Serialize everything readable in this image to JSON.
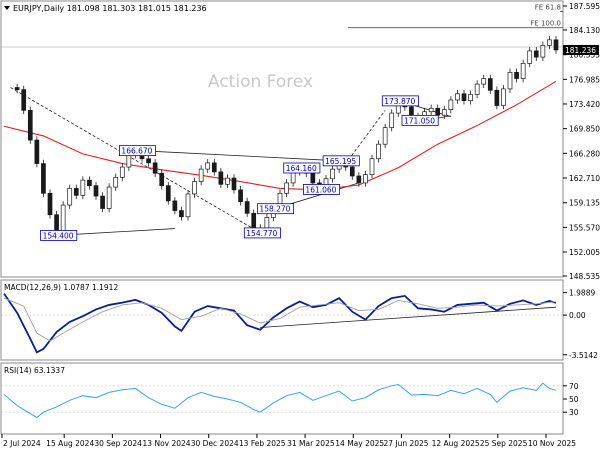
{
  "header": {
    "symbol_line": "EURJPY,Daily  181.098 181.303 181.015 181.236",
    "watermark": "Action Forex",
    "fe_618": "FE 61.8",
    "fe_100": "FE 100.0"
  },
  "colors": {
    "price_line": "#1a1a1a",
    "bull": "#ffffff",
    "ma": "#e02020",
    "macd": "#0d1f8c",
    "signal": "#9aa0aa",
    "rsi": "#3aa0ff",
    "trend": "#202020",
    "label_border": "#0000aa",
    "label_text": "#0000aa",
    "current_bg": "#000000"
  },
  "chart_data": [
    {
      "type": "line",
      "title": "EURJPY,Daily",
      "ylim": [
        148.535,
        187.595
      ],
      "yticks": [
        148.535,
        152.005,
        155.57,
        159.135,
        162.71,
        166.28,
        169.85,
        173.42,
        176.985,
        180.555,
        184.13,
        187.595
      ],
      "ytick_labels": [
        "148.535",
        "152.005",
        "155.570",
        "159.135",
        "162.710",
        "166.280",
        "169.850",
        "173.420",
        "176.985",
        "180.555",
        "184.130",
        "187.595"
      ],
      "x_dates": [
        "2 Jul 2024",
        "15 Aug 2024",
        "30 Sep 2024",
        "13 Nov 2024",
        "30 Dec 2024",
        "13 Feb 2025",
        "31 Mar 2025",
        "14 May 2025",
        "27 Jun 2025",
        "12 Aug 2025",
        "25 Sep 2025",
        "10 Nov 2025"
      ],
      "current_price": 181.236,
      "current_price_label": "181.236",
      "ohlc": {
        "open": 181.098,
        "high": 181.303,
        "low": 181.015,
        "close": 181.236
      },
      "price_path": [
        [
          0,
          175.8
        ],
        [
          2,
          175.5
        ],
        [
          3,
          172.5
        ],
        [
          4,
          168.2
        ],
        [
          5,
          164.8
        ],
        [
          6,
          160.5
        ],
        [
          7,
          157.4
        ],
        [
          8,
          154.4
        ],
        [
          9,
          158.8
        ],
        [
          10,
          161.2
        ],
        [
          11,
          160.2
        ],
        [
          12,
          162.4
        ],
        [
          13,
          161.6
        ],
        [
          14,
          160.1
        ],
        [
          15,
          158.3
        ],
        [
          16,
          161.4
        ],
        [
          17,
          162.8
        ],
        [
          18,
          164.3
        ],
        [
          19,
          166.1
        ],
        [
          20,
          166.67
        ],
        [
          21,
          165.5
        ],
        [
          22,
          164.9
        ],
        [
          23,
          163.4
        ],
        [
          24,
          161.6
        ],
        [
          25,
          159.4
        ],
        [
          26,
          158.0
        ],
        [
          27,
          157.1
        ],
        [
          28,
          160.4
        ],
        [
          29,
          162.2
        ],
        [
          30,
          164.0
        ],
        [
          31,
          164.9
        ],
        [
          32,
          163.6
        ],
        [
          33,
          161.8
        ],
        [
          34,
          162.7
        ],
        [
          35,
          161.0
        ],
        [
          36,
          159.3
        ],
        [
          37,
          157.6
        ],
        [
          38,
          155.5
        ],
        [
          39,
          154.77
        ],
        [
          40,
          157.0
        ],
        [
          41,
          158.27
        ],
        [
          42,
          160.5
        ],
        [
          43,
          162.0
        ],
        [
          44,
          163.6
        ],
        [
          45,
          164.16
        ],
        [
          46,
          163.4
        ],
        [
          47,
          162.0
        ],
        [
          48,
          161.06
        ],
        [
          49,
          162.6
        ],
        [
          50,
          164.0
        ],
        [
          51,
          165.19
        ],
        [
          52,
          164.3
        ],
        [
          53,
          163.0
        ],
        [
          54,
          162.0
        ],
        [
          55,
          163.2
        ],
        [
          56,
          165.5
        ],
        [
          57,
          167.6
        ],
        [
          58,
          170.0
        ],
        [
          59,
          172.1
        ],
        [
          60,
          173.87
        ],
        [
          61,
          173.0
        ],
        [
          62,
          171.6
        ],
        [
          63,
          171.05
        ],
        [
          64,
          172.3
        ],
        [
          65,
          172.8
        ],
        [
          66,
          171.8
        ],
        [
          67,
          172.6
        ],
        [
          68,
          174.0
        ],
        [
          69,
          174.9
        ],
        [
          70,
          173.9
        ],
        [
          71,
          174.8
        ],
        [
          72,
          176.3
        ],
        [
          73,
          177.1
        ],
        [
          74,
          175.4
        ],
        [
          75,
          173.2
        ],
        [
          76,
          175.6
        ],
        [
          77,
          178.0
        ],
        [
          78,
          177.1
        ],
        [
          79,
          179.3
        ],
        [
          80,
          181.1
        ],
        [
          81,
          180.2
        ],
        [
          82,
          181.9
        ],
        [
          83,
          182.7
        ],
        [
          84,
          181.236
        ]
      ],
      "ma_path": [
        [
          0,
          170.2
        ],
        [
          6,
          168.8
        ],
        [
          12,
          166.2
        ],
        [
          18,
          164.8
        ],
        [
          24,
          163.9
        ],
        [
          30,
          163.1
        ],
        [
          36,
          162.2
        ],
        [
          42,
          161.2
        ],
        [
          48,
          161.0
        ],
        [
          54,
          161.7
        ],
        [
          60,
          164.2
        ],
        [
          66,
          167.6
        ],
        [
          72,
          170.3
        ],
        [
          78,
          173.3
        ],
        [
          84,
          176.7
        ]
      ],
      "annotations": [
        {
          "label": "166.670",
          "x": 20,
          "value": 166.67
        },
        {
          "label": "154.400",
          "x": 8,
          "value": 154.4
        },
        {
          "label": "164.160",
          "x": 45,
          "value": 164.16
        },
        {
          "label": "165.195",
          "x": 51,
          "value": 165.195
        },
        {
          "label": "161.060",
          "x": 48,
          "value": 161.06
        },
        {
          "label": "158.270",
          "x": 41,
          "value": 158.27
        },
        {
          "label": "154.770",
          "x": 39,
          "value": 154.77
        },
        {
          "label": "173.870",
          "x": 60,
          "value": 173.87
        },
        {
          "label": "171.050",
          "x": 63,
          "value": 171.05
        }
      ],
      "trendlines": [
        {
          "from": [
            1,
            175.8
          ],
          "to": [
            39,
            154.8
          ]
        },
        {
          "from": [
            20,
            166.7
          ],
          "to": [
            51,
            165.2
          ]
        },
        {
          "from": [
            8,
            154.4
          ],
          "to": [
            26,
            155.4
          ]
        },
        {
          "from": [
            41,
            158.2
          ],
          "to": [
            54,
            162.0
          ]
        },
        {
          "from": [
            60,
            173.9
          ],
          "to": [
            68,
            171.6
          ]
        },
        {
          "from": [
            63,
            170.9
          ],
          "to": [
            68,
            171.7
          ]
        },
        {
          "from": [
            52,
            164.8
          ],
          "to": [
            58,
            172.5
          ]
        }
      ],
      "fe_levels": [
        {
          "name": "FE 61.8",
          "value": 186.8
        },
        {
          "name": "FE 100.0",
          "value": 184.45
        }
      ]
    },
    {
      "type": "line",
      "title": "MACD(12,26,9) 1.0787 1.1912",
      "ylim": [
        -3.8,
        2.4
      ],
      "yticks": [
        1.9889,
        0.0,
        -3.5142
      ],
      "ytick_labels": [
        "1.9889",
        "0.00",
        "-3.5142"
      ],
      "series": [
        {
          "name": "MACD",
          "values": [
            [
              0,
              1.9
            ],
            [
              2,
              0.2
            ],
            [
              4,
              -2.1
            ],
            [
              5,
              -3.3
            ],
            [
              6,
              -3.0
            ],
            [
              8,
              -1.5
            ],
            [
              10,
              -0.6
            ],
            [
              12,
              -0.1
            ],
            [
              14,
              0.5
            ],
            [
              16,
              0.9
            ],
            [
              18,
              1.1
            ],
            [
              20,
              1.35
            ],
            [
              22,
              0.9
            ],
            [
              24,
              0.2
            ],
            [
              26,
              -1.0
            ],
            [
              27,
              -1.4
            ],
            [
              29,
              0.3
            ],
            [
              31,
              0.8
            ],
            [
              33,
              0.6
            ],
            [
              35,
              0.4
            ],
            [
              37,
              -0.9
            ],
            [
              39,
              -1.3
            ],
            [
              41,
              -0.2
            ],
            [
              43,
              0.6
            ],
            [
              45,
              1.2
            ],
            [
              47,
              0.7
            ],
            [
              49,
              0.9
            ],
            [
              51,
              1.5
            ],
            [
              53,
              0.3
            ],
            [
              55,
              -0.4
            ],
            [
              57,
              0.8
            ],
            [
              59,
              1.5
            ],
            [
              61,
              1.7
            ],
            [
              63,
              0.6
            ],
            [
              65,
              0.5
            ],
            [
              67,
              0.3
            ],
            [
              69,
              0.9
            ],
            [
              71,
              1.0
            ],
            [
              73,
              1.1
            ],
            [
              75,
              0.4
            ],
            [
              77,
              1.0
            ],
            [
              79,
              1.3
            ],
            [
              81,
              0.9
            ],
            [
              83,
              1.25
            ],
            [
              84,
              1.0787
            ]
          ]
        },
        {
          "name": "Signal",
          "values": [
            [
              0,
              1.5
            ],
            [
              3,
              0.8
            ],
            [
              5,
              -1.6
            ],
            [
              7,
              -2.3
            ],
            [
              9,
              -1.6
            ],
            [
              12,
              -0.6
            ],
            [
              15,
              0.3
            ],
            [
              18,
              0.9
            ],
            [
              21,
              1.1
            ],
            [
              24,
              0.6
            ],
            [
              27,
              -0.4
            ],
            [
              30,
              -0.1
            ],
            [
              33,
              0.6
            ],
            [
              36,
              0.1
            ],
            [
              39,
              -0.7
            ],
            [
              42,
              -0.3
            ],
            [
              45,
              0.7
            ],
            [
              48,
              0.9
            ],
            [
              51,
              1.1
            ],
            [
              54,
              0.4
            ],
            [
              57,
              0.5
            ],
            [
              60,
              1.3
            ],
            [
              63,
              1.0
            ],
            [
              66,
              0.6
            ],
            [
              69,
              0.7
            ],
            [
              72,
              0.9
            ],
            [
              75,
              0.8
            ],
            [
              78,
              0.9
            ],
            [
              81,
              1.0
            ],
            [
              84,
              1.1912
            ]
          ]
        }
      ],
      "trendlines": [
        {
          "from": [
            39,
            -1.1
          ],
          "to": [
            84,
            0.7
          ]
        }
      ]
    },
    {
      "type": "line",
      "title": "RSI(14) 63.1337",
      "ylim": [
        0,
        100
      ],
      "yticks": [
        70,
        50,
        30
      ],
      "ytick_labels": [
        "70",
        "50",
        "30"
      ],
      "series": [
        {
          "name": "RSI",
          "values": [
            [
              0,
              57
            ],
            [
              2,
              40
            ],
            [
              4,
              28
            ],
            [
              5,
              22
            ],
            [
              6,
              30
            ],
            [
              8,
              38
            ],
            [
              10,
              48
            ],
            [
              12,
              55
            ],
            [
              14,
              52
            ],
            [
              16,
              60
            ],
            [
              18,
              64
            ],
            [
              20,
              66
            ],
            [
              22,
              52
            ],
            [
              24,
              42
            ],
            [
              26,
              36
            ],
            [
              28,
              52
            ],
            [
              30,
              60
            ],
            [
              32,
              54
            ],
            [
              34,
              50
            ],
            [
              36,
              45
            ],
            [
              38,
              34
            ],
            [
              39,
              30
            ],
            [
              41,
              44
            ],
            [
              43,
              55
            ],
            [
              45,
              60
            ],
            [
              47,
              48
            ],
            [
              49,
              55
            ],
            [
              51,
              62
            ],
            [
              53,
              47
            ],
            [
              55,
              52
            ],
            [
              57,
              64
            ],
            [
              59,
              70
            ],
            [
              60,
              72
            ],
            [
              62,
              56
            ],
            [
              64,
              57
            ],
            [
              66,
              55
            ],
            [
              68,
              63
            ],
            [
              70,
              58
            ],
            [
              72,
              66
            ],
            [
              74,
              57
            ],
            [
              75,
              45
            ],
            [
              77,
              62
            ],
            [
              79,
              67
            ],
            [
              81,
              63
            ],
            [
              82,
              74
            ],
            [
              83,
              66
            ],
            [
              84,
              63.1337
            ]
          ]
        }
      ],
      "levels": [
        70,
        30
      ]
    }
  ]
}
